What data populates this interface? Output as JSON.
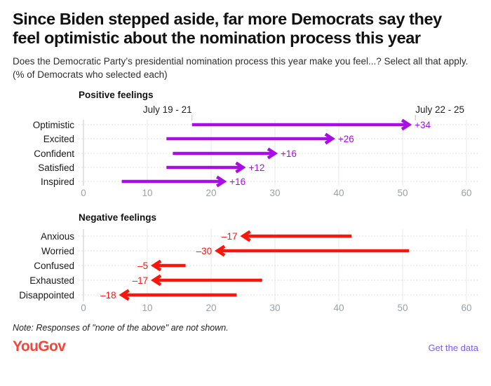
{
  "title": "Since Biden stepped aside, far more Democrats say they feel optimistic about the nomination process this year",
  "subtitle": "Does the Democratic Party’s presidential nomination process this year make you feel...? Select all that apply. (% of Democrats who selected each)",
  "note": "Note: Responses of \"none of the above\" are not shown.",
  "footer": {
    "logo_text": "YouGov",
    "logo_color": "#FA4338",
    "link_label": "Get the data",
    "link_color": "#7A5CF0"
  },
  "chart_data": [
    {
      "type": "arrow",
      "heading": "Positive feelings",
      "color": "#A90DE6",
      "annotations": [
        {
          "label": "July 19 - 21",
          "value": 17,
          "anchor": "end"
        },
        {
          "label": "July 22 - 25",
          "value": 52,
          "anchor": "start"
        }
      ],
      "categories": [
        "Optimistic",
        "Excited",
        "Confident",
        "Satisfied",
        "Inspired"
      ],
      "rows": [
        {
          "category": "Optimistic",
          "from": 17,
          "to": 51,
          "change_label": "+34"
        },
        {
          "category": "Excited",
          "from": 13,
          "to": 39,
          "change_label": "+26"
        },
        {
          "category": "Confident",
          "from": 14,
          "to": 30,
          "change_label": "+16"
        },
        {
          "category": "Satisfied",
          "from": 13,
          "to": 25,
          "change_label": "+12"
        },
        {
          "category": "Inspired",
          "from": 6,
          "to": 22,
          "change_label": "+16"
        }
      ]
    },
    {
      "type": "arrow",
      "heading": "Negative feelings",
      "color": "#F8170D",
      "annotations": [],
      "categories": [
        "Anxious",
        "Worried",
        "Confused",
        "Exhausted",
        "Disappointed"
      ],
      "rows": [
        {
          "category": "Anxious",
          "from": 42,
          "to": 25,
          "change_label": "–17"
        },
        {
          "category": "Worried",
          "from": 51,
          "to": 21,
          "change_label": "–30"
        },
        {
          "category": "Confused",
          "from": 16,
          "to": 11,
          "change_label": "–5"
        },
        {
          "category": "Exhausted",
          "from": 28,
          "to": 11,
          "change_label": "–17"
        },
        {
          "category": "Disappointed",
          "from": 24,
          "to": 6,
          "change_label": "–18"
        }
      ]
    }
  ],
  "axis": {
    "min": 0,
    "max": 60,
    "step": 10,
    "tick_labels": [
      "0",
      "10",
      "20",
      "30",
      "40",
      "50",
      "60"
    ]
  }
}
